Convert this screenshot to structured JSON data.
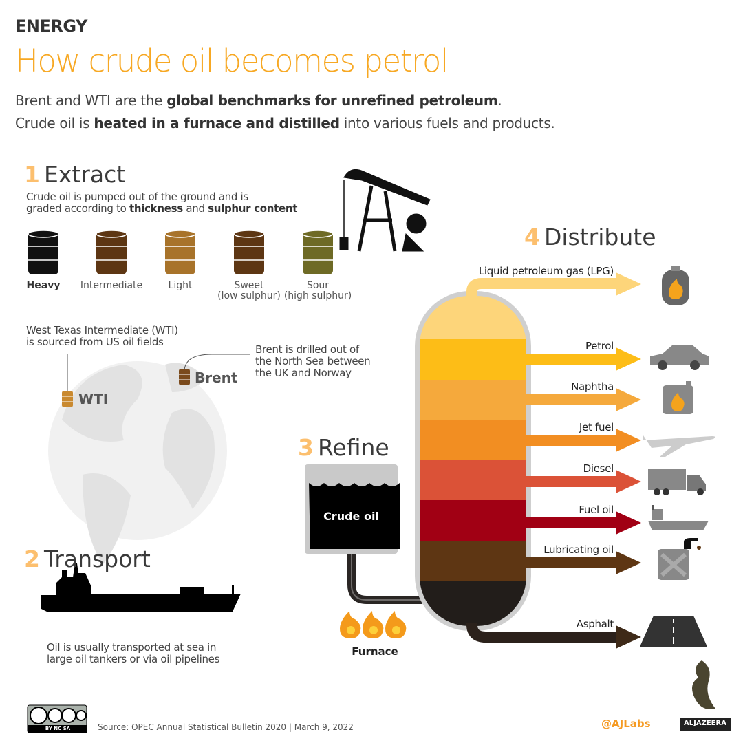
{
  "header": {
    "category": "ENERGY",
    "title": "How crude oil becomes petrol",
    "line1": {
      "a": "Brent and WTI are the ",
      "b": "global benchmarks for unrefined petroleum",
      "c": "."
    },
    "line2": {
      "a": "Crude oil is ",
      "b": "heated in a furnace and distilled",
      "c": " into various fuels and products."
    }
  },
  "extract": {
    "num": "1",
    "title": "Extract",
    "desc1": "Crude oil is pumped out of the ground and is",
    "desc2a": "graded according to ",
    "desc2b": "thickness",
    "desc2c": " and ",
    "desc2d": "sulphur content",
    "barrels": [
      {
        "label": "Heavy",
        "sub": "",
        "color": "#111111"
      },
      {
        "label": "Intermediate",
        "sub": "",
        "color": "#5d3613"
      },
      {
        "label": "Light",
        "sub": "",
        "color": "#a8732a"
      },
      {
        "label": "Sweet",
        "sub": "(low sulphur)",
        "color": "#5d3613"
      },
      {
        "label": "Sour",
        "sub": "(high sulphur)",
        "color": "#6e6a25"
      }
    ]
  },
  "map": {
    "wti_note1": "West Texas Intermediate (WTI)",
    "wti_note2": "is sourced from US oil fields",
    "wti": "WTI",
    "brent": "Brent",
    "brent_note1": "Brent is drilled out of",
    "brent_note2": "the North Sea between",
    "brent_note3": "the UK and Norway"
  },
  "transport": {
    "num": "2",
    "title": "Transport",
    "desc1": "Oil is usually transported at sea in",
    "desc2": "large oil tankers or via oil pipelines"
  },
  "refine": {
    "num": "3",
    "title": "Refine",
    "tank": "Crude oil",
    "furnace": "Furnace"
  },
  "distribute": {
    "num": "4",
    "title": "Distribute",
    "products": [
      {
        "label": "Liquid petroleum gas (LPG)",
        "color": "#fdd57a",
        "icon": "gas-cylinder-icon"
      },
      {
        "label": "Petrol",
        "color": "#fdbd17",
        "icon": "car-icon"
      },
      {
        "label": "Naphtha",
        "color": "#f5a93c",
        "icon": "fuel-can-icon"
      },
      {
        "label": "Jet fuel",
        "color": "#f28e22",
        "icon": "airplane-icon"
      },
      {
        "label": "Diesel",
        "color": "#db5237",
        "icon": "truck-icon"
      },
      {
        "label": "Fuel oil",
        "color": "#a10014",
        "icon": "ship-icon"
      },
      {
        "label": "Lubricating oil",
        "color": "#5e3613",
        "icon": "oil-jerrycan-icon"
      },
      {
        "label": "Asphalt",
        "color": "#221d1a",
        "icon": "road-icon"
      }
    ]
  },
  "footer": {
    "license": "BY NC SA",
    "source": "Source:  OPEC Annual Statistical Bulletin 2020 |  March 9, 2022",
    "ajlabs": "@AJLabs",
    "brand": "ALJAZEERA"
  }
}
